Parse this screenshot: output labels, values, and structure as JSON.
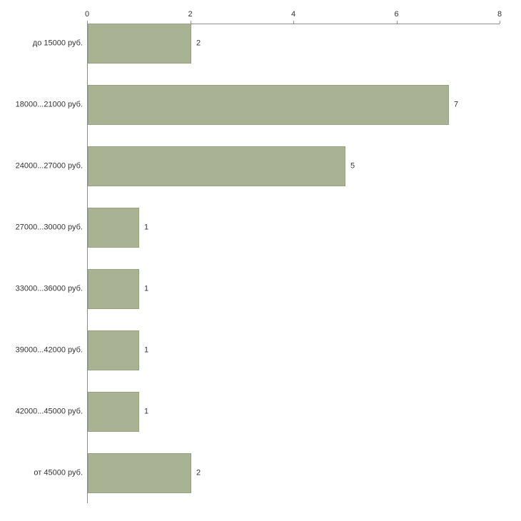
{
  "chart_data": {
    "type": "bar",
    "orientation": "horizontal",
    "title": "",
    "xlabel": "",
    "ylabel": "",
    "categories": [
      "до 15000 руб.",
      "18000...21000 руб.",
      "24000...27000 руб.",
      "27000...30000 руб.",
      "33000...36000 руб.",
      "39000...42000 руб.",
      "42000...45000 руб.",
      "от 45000 руб."
    ],
    "values": [
      2,
      7,
      5,
      1,
      1,
      1,
      1,
      2
    ],
    "value_labels": [
      "2",
      "7",
      "5",
      "1",
      "1",
      "1",
      "1",
      "2"
    ],
    "xlim": [
      0,
      8
    ],
    "xticks": [
      "0",
      "2",
      "4",
      "6",
      "8"
    ],
    "xtick_values": [
      0,
      2,
      4,
      6,
      8
    ],
    "grid": false,
    "legend": "none",
    "axis_position": "top-left",
    "bar_color": "#a9b293",
    "bar_border_color": "#97a17f",
    "axis_color": "#8c8c8c",
    "text_color": "#333333",
    "background_color": "#ffffff"
  }
}
